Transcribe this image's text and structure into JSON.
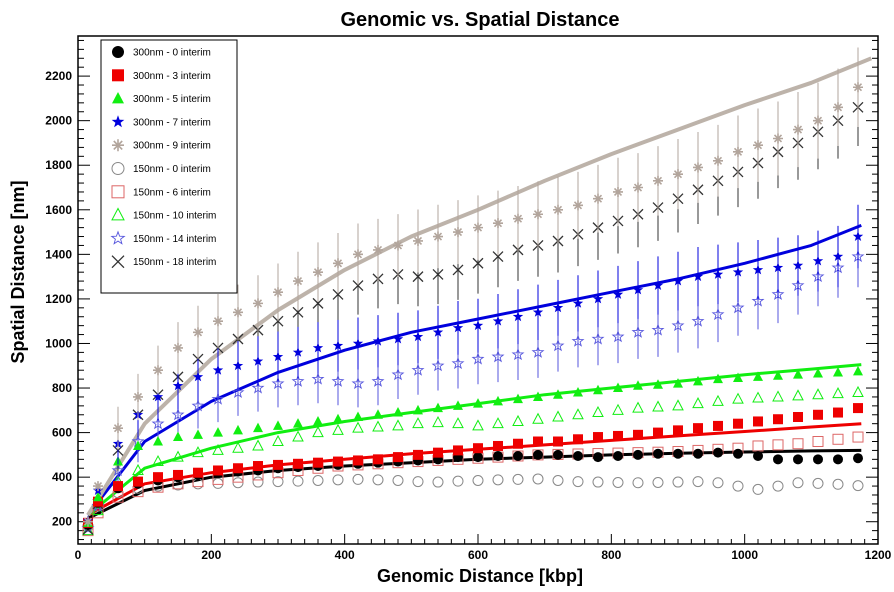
{
  "chart_data": {
    "type": "scatter",
    "title": "Genomic vs. Spatial Distance",
    "xlabel": "Genomic Distance [kbp]",
    "ylabel": "Spatial Distance [nm]",
    "xlim": [
      0,
      1200
    ],
    "ylim": [
      100,
      2380
    ],
    "xticks": [
      0,
      200,
      400,
      600,
      800,
      1000,
      1200
    ],
    "yticks": [
      200,
      400,
      600,
      800,
      1000,
      1200,
      1400,
      1600,
      1800,
      2000,
      2200
    ],
    "grid": false,
    "legend_position": "top-left",
    "x_points": [
      15,
      30,
      60,
      90,
      120,
      150,
      180,
      210,
      240,
      270,
      300,
      330,
      360,
      390,
      420,
      450,
      480,
      510,
      540,
      570,
      600,
      630,
      660,
      690,
      720,
      750,
      780,
      810,
      840,
      870,
      900,
      930,
      960,
      990,
      1020,
      1050,
      1080,
      1110,
      1140,
      1170
    ],
    "series": [
      {
        "name": "300nm - 0 interim",
        "marker": "circle-filled",
        "color": "#000000",
        "fit_color": "#000000",
        "values": [
          185,
          285,
          350,
          370,
          385,
          400,
          410,
          420,
          425,
          430,
          440,
          445,
          450,
          455,
          460,
          465,
          470,
          475,
          480,
          490,
          490,
          495,
          495,
          500,
          500,
          495,
          490,
          495,
          500,
          505,
          505,
          505,
          510,
          505,
          495,
          480,
          480,
          480,
          480,
          485
        ],
        "fit": [
          [
            15,
            215
          ],
          [
            100,
            340
          ],
          [
            200,
            400
          ],
          [
            300,
            430
          ],
          [
            400,
            450
          ],
          [
            500,
            465
          ],
          [
            600,
            480
          ],
          [
            700,
            490
          ],
          [
            800,
            500
          ],
          [
            900,
            507
          ],
          [
            1000,
            513
          ],
          [
            1100,
            518
          ],
          [
            1175,
            520
          ]
        ]
      },
      {
        "name": "300nm - 3 interim",
        "marker": "square-filled",
        "color": "#ee0000",
        "fit_color": "#ee0000",
        "values": [
          195,
          290,
          360,
          380,
          400,
          410,
          420,
          430,
          440,
          450,
          455,
          460,
          465,
          470,
          475,
          480,
          490,
          500,
          510,
          520,
          530,
          540,
          550,
          560,
          560,
          570,
          580,
          585,
          590,
          600,
          610,
          620,
          630,
          640,
          650,
          660,
          670,
          680,
          690,
          710
        ],
        "fit": [
          [
            15,
            230
          ],
          [
            100,
            370
          ],
          [
            200,
            420
          ],
          [
            300,
            455
          ],
          [
            400,
            480
          ],
          [
            500,
            505
          ],
          [
            600,
            525
          ],
          [
            700,
            545
          ],
          [
            800,
            565
          ],
          [
            900,
            585
          ],
          [
            1000,
            605
          ],
          [
            1100,
            625
          ],
          [
            1175,
            640
          ]
        ]
      },
      {
        "name": "300nm - 5 interim",
        "marker": "triangle-filled",
        "color": "#11ee11",
        "fit_color": "#11ee11",
        "values": [
          195,
          310,
          470,
          540,
          560,
          580,
          590,
          600,
          610,
          620,
          630,
          640,
          650,
          660,
          670,
          680,
          690,
          700,
          710,
          720,
          730,
          740,
          750,
          760,
          770,
          780,
          790,
          800,
          810,
          815,
          820,
          830,
          840,
          845,
          850,
          855,
          860,
          865,
          870,
          875
        ],
        "fit": [
          [
            15,
            230
          ],
          [
            100,
            440
          ],
          [
            200,
            530
          ],
          [
            300,
            600
          ],
          [
            400,
            650
          ],
          [
            500,
            690
          ],
          [
            600,
            730
          ],
          [
            700,
            770
          ],
          [
            800,
            800
          ],
          [
            900,
            830
          ],
          [
            1000,
            860
          ],
          [
            1100,
            885
          ],
          [
            1175,
            905
          ]
        ]
      },
      {
        "name": "300nm - 7 interim",
        "marker": "star-filled",
        "color": "#0000dd",
        "fit_color": "#0000dd",
        "values": [
          205,
          340,
          550,
          680,
          760,
          810,
          850,
          880,
          900,
          920,
          940,
          960,
          980,
          990,
          1000,
          1010,
          1020,
          1030,
          1050,
          1070,
          1080,
          1100,
          1120,
          1140,
          1160,
          1180,
          1200,
          1220,
          1240,
          1260,
          1280,
          1300,
          1310,
          1320,
          1330,
          1340,
          1350,
          1370,
          1390,
          1480
        ],
        "fit": [
          [
            15,
            230
          ],
          [
            100,
            560
          ],
          [
            200,
            740
          ],
          [
            300,
            870
          ],
          [
            400,
            970
          ],
          [
            500,
            1050
          ],
          [
            600,
            1110
          ],
          [
            700,
            1170
          ],
          [
            800,
            1230
          ],
          [
            900,
            1290
          ],
          [
            1000,
            1360
          ],
          [
            1100,
            1440
          ],
          [
            1175,
            1530
          ]
        ]
      },
      {
        "name": "300nm - 9 interim",
        "marker": "asterisk",
        "color": "#b2a59c",
        "fit_color": "#bdb3aa",
        "values": [
          200,
          360,
          620,
          760,
          880,
          980,
          1050,
          1100,
          1140,
          1180,
          1230,
          1280,
          1320,
          1360,
          1400,
          1420,
          1440,
          1460,
          1480,
          1500,
          1520,
          1540,
          1560,
          1580,
          1600,
          1620,
          1650,
          1680,
          1700,
          1730,
          1760,
          1790,
          1820,
          1860,
          1890,
          1920,
          1960,
          2000,
          2060,
          2150
        ],
        "fit": [
          [
            15,
            230
          ],
          [
            100,
            640
          ],
          [
            200,
            930
          ],
          [
            300,
            1150
          ],
          [
            400,
            1330
          ],
          [
            500,
            1480
          ],
          [
            600,
            1600
          ],
          [
            700,
            1730
          ],
          [
            800,
            1850
          ],
          [
            900,
            1960
          ],
          [
            1000,
            2070
          ],
          [
            1100,
            2170
          ],
          [
            1190,
            2280
          ]
        ]
      },
      {
        "name": "150nm - 0 interim",
        "marker": "circle-open",
        "color": "#888888",
        "values": [
          180,
          270,
          330,
          350,
          360,
          365,
          370,
          372,
          375,
          378,
          380,
          382,
          385,
          388,
          390,
          388,
          385,
          380,
          378,
          382,
          385,
          388,
          390,
          392,
          385,
          380,
          378,
          376,
          375,
          376,
          378,
          380,
          375,
          360,
          345,
          360,
          375,
          372,
          368,
          362
        ]
      },
      {
        "name": "150nm - 6 interim",
        "marker": "square-open",
        "color": "#dd6666",
        "values": [
          160,
          240,
          310,
          335,
          355,
          370,
          380,
          390,
          400,
          410,
          420,
          430,
          440,
          450,
          455,
          460,
          465,
          470,
          475,
          480,
          485,
          490,
          495,
          500,
          502,
          504,
          506,
          508,
          510,
          512,
          515,
          520,
          525,
          530,
          540,
          545,
          550,
          560,
          570,
          580
        ]
      },
      {
        "name": "150nm - 10 interim",
        "marker": "triangle-open",
        "color": "#11ee11",
        "values": [
          160,
          250,
          380,
          430,
          470,
          490,
          510,
          520,
          530,
          540,
          560,
          580,
          600,
          610,
          620,
          625,
          630,
          640,
          645,
          640,
          630,
          640,
          650,
          660,
          670,
          680,
          690,
          700,
          710,
          715,
          720,
          730,
          740,
          750,
          755,
          760,
          765,
          770,
          775,
          780
        ]
      },
      {
        "name": "150nm - 14 interim",
        "marker": "star-open",
        "color": "#5555dd",
        "values": [
          170,
          270,
          430,
          560,
          640,
          680,
          720,
          750,
          780,
          800,
          820,
          830,
          840,
          830,
          820,
          830,
          860,
          880,
          900,
          910,
          930,
          940,
          950,
          960,
          990,
          1010,
          1020,
          1030,
          1050,
          1060,
          1080,
          1100,
          1130,
          1160,
          1190,
          1220,
          1260,
          1300,
          1340,
          1390
        ]
      },
      {
        "name": "150nm - 18 interim",
        "marker": "cross",
        "color": "#333333",
        "values": [
          165,
          280,
          520,
          680,
          770,
          850,
          930,
          980,
          1020,
          1060,
          1100,
          1140,
          1180,
          1220,
          1260,
          1290,
          1310,
          1300,
          1310,
          1330,
          1360,
          1390,
          1420,
          1440,
          1460,
          1490,
          1520,
          1550,
          1580,
          1610,
          1650,
          1690,
          1730,
          1770,
          1810,
          1860,
          1900,
          1950,
          2000,
          2060
        ]
      }
    ]
  }
}
